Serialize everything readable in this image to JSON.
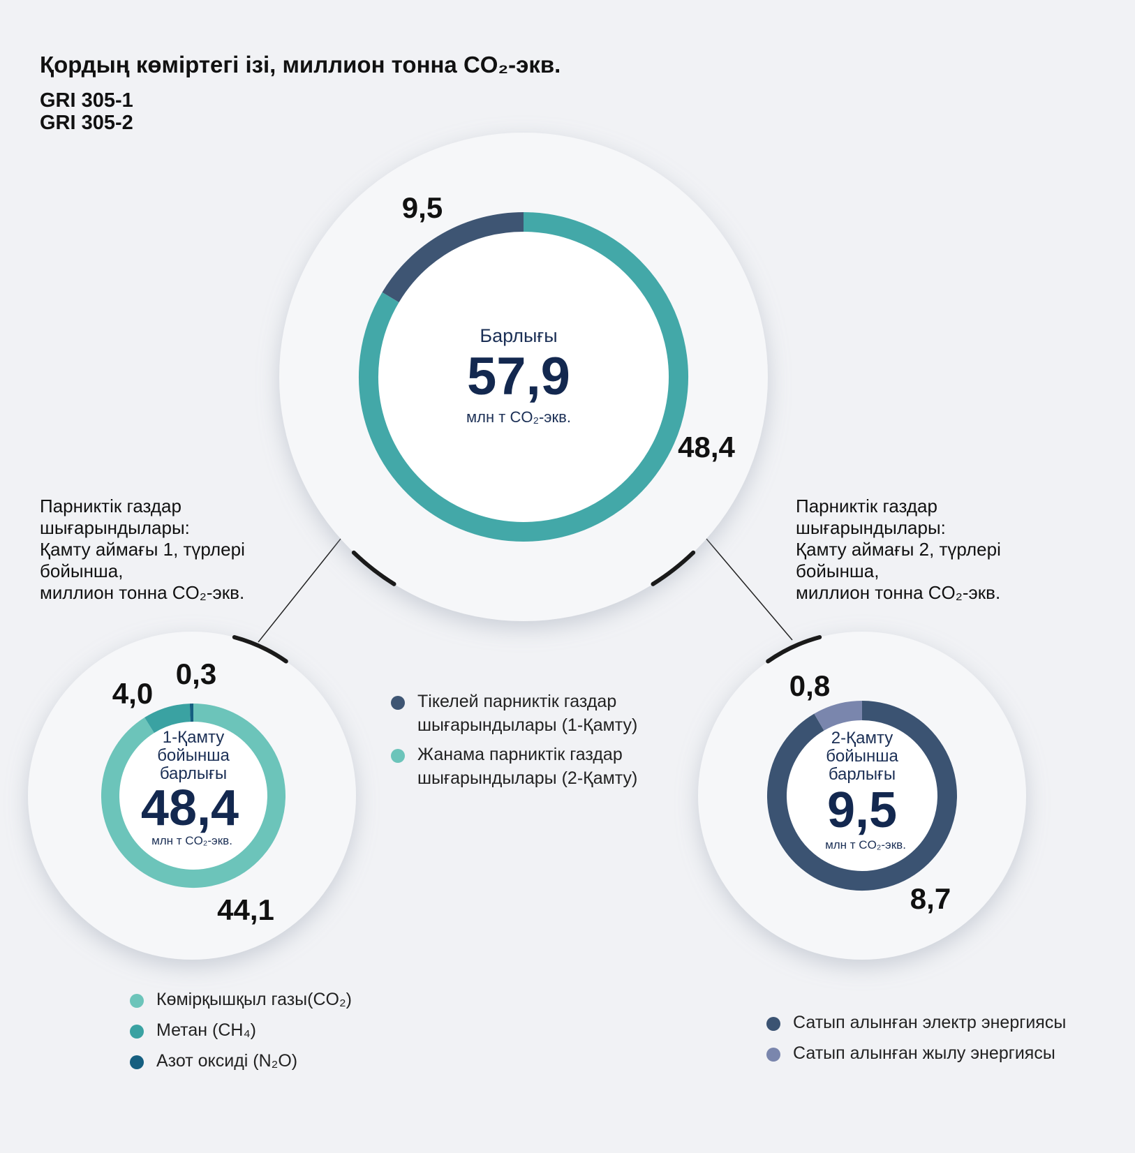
{
  "title": "Қордың көміртегі ізі, миллион тонна CO₂-экв.",
  "gri": [
    "GRI 305-1",
    "GRI 305-2"
  ],
  "colors": {
    "scope1_direct": "#3e5573",
    "scope2_indirect": "#43a8a8",
    "co2": "#6cc4ba",
    "ch4": "#3aa2a2",
    "n2o": "#155f80",
    "electricity": "#3b5372",
    "heat": "#7a86ad"
  },
  "captions": {
    "scope1": "Парниктік газдар\nшығарындылары:\nҚамту аймағы 1, түрлері\nбойынша,\nмиллион тонна CO₂-экв.",
    "scope2": "Парниктік газдар\nшығарындылары:\nҚамту аймағы 2, түрлері\nбойынша,\nмиллион тонна CO₂-экв."
  },
  "legends": {
    "main": [
      {
        "label": "Тікелей парниктік газдар\nшығарындылары (1-Қамту)",
        "color": "#3e5573"
      },
      {
        "label": "Жанама парниктік газдар\nшығарындылары (2-Қамту)",
        "color": "#6cc4ba"
      }
    ],
    "scope1": [
      {
        "label": "Көмірқышқыл газы(CO₂)",
        "color": "#6cc4ba"
      },
      {
        "label": "Метан (CH₄)",
        "color": "#3aa2a2"
      },
      {
        "label": "Азот оксиді (N₂O)",
        "color": "#155f80"
      }
    ],
    "scope2": [
      {
        "label": "Сатып алынған электр энергиясы",
        "color": "#3b5372"
      },
      {
        "label": "Сатып алынған жылу энергиясы",
        "color": "#7a86ad"
      }
    ]
  },
  "chart_data": [
    {
      "type": "pie",
      "center_label": "Барлығы",
      "total": "57,9",
      "unit": "млн т CO₂-экв.",
      "categories": [
        "Тікелей парниктік газдар шығарындылары (1-Қамту)",
        "Жанама парниктік газдар шығарындылары (2-Қамту)"
      ],
      "values": [
        48.4,
        9.5
      ],
      "value_labels": [
        "48,4",
        "9,5"
      ]
    },
    {
      "type": "pie",
      "center_label": "1-Қамту\nбойынша\nбарлығы",
      "total": "48,4",
      "unit": "млн т CO₂-экв.",
      "categories": [
        "Көмірқышқыл газы(CO₂)",
        "Метан (CH₄)",
        "Азот оксиді (N₂O)"
      ],
      "values": [
        44.1,
        4.0,
        0.3
      ],
      "value_labels": [
        "44,1",
        "4,0",
        "0,3"
      ]
    },
    {
      "type": "pie",
      "center_label": "2-Қамту\nбойынша\nбарлығы",
      "total": "9,5",
      "unit": "млн т CO₂-экв.",
      "categories": [
        "Сатып алынған электр энергиясы",
        "Сатып алынған жылу энергиясы"
      ],
      "values": [
        8.7,
        0.8
      ],
      "value_labels": [
        "8,7",
        "0,8"
      ]
    }
  ]
}
